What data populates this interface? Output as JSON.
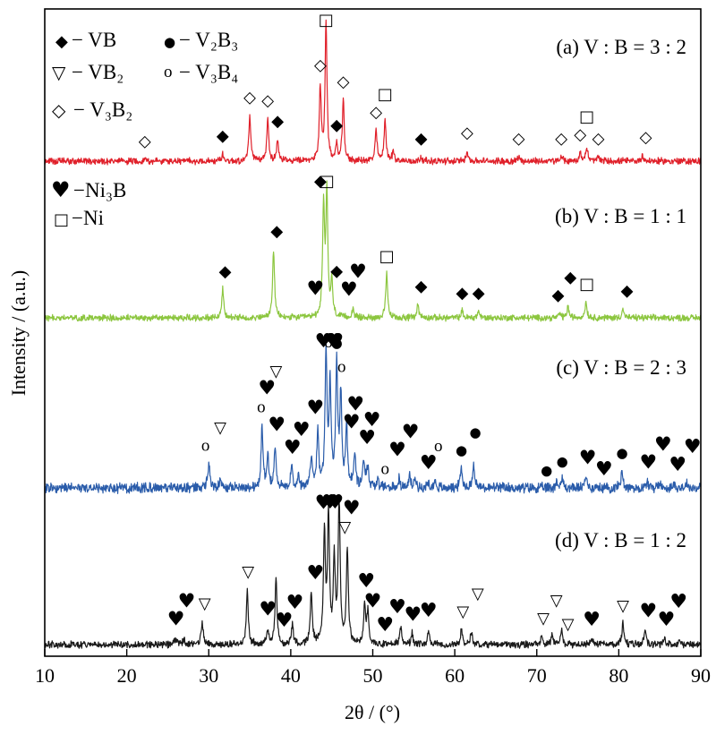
{
  "chart_data": {
    "type": "line",
    "xlabel": "2θ / (°)",
    "ylabel": "Intensity / (a.u.)",
    "xlim": [
      10,
      90
    ],
    "xticks": [
      10,
      20,
      30,
      40,
      50,
      60,
      70,
      80,
      90
    ],
    "grid": false,
    "legend_position": "top-left",
    "legend": [
      {
        "key": "VB",
        "glyph": "◆",
        "text": "− VB"
      },
      {
        "key": "V2B3",
        "glyph": "●",
        "text": "− V₂B₃"
      },
      {
        "key": "VB2",
        "glyph": "▽",
        "text": "− VB₂"
      },
      {
        "key": "V3B4",
        "glyph": "o",
        "text": "− V₃B₄"
      },
      {
        "key": "V3B2",
        "glyph": "◇",
        "text": "− V₃B₂"
      },
      {
        "key": "Ni3B",
        "glyph": "♥",
        "text": "−Ni₃B"
      },
      {
        "key": "Ni",
        "glyph": "□",
        "text": "−Ni"
      }
    ],
    "series": [
      {
        "name": "(a) V : B = 3 : 2",
        "color": "#e0202a",
        "noise": 2.2,
        "peaks": [
          [
            22.2,
            2
          ],
          [
            31.7,
            6
          ],
          [
            35.0,
            38
          ],
          [
            37.2,
            35
          ],
          [
            38.4,
            18
          ],
          [
            43.6,
            60
          ],
          [
            44.3,
            115
          ],
          [
            45.6,
            12
          ],
          [
            46.4,
            50
          ],
          [
            50.4,
            25
          ],
          [
            51.5,
            35
          ],
          [
            52.5,
            8
          ],
          [
            55.9,
            4
          ],
          [
            61.5,
            9
          ],
          [
            67.8,
            4
          ],
          [
            73.0,
            4
          ],
          [
            75.3,
            7
          ],
          [
            76.1,
            12
          ],
          [
            77.5,
            4
          ],
          [
            82.9,
            5
          ]
        ],
        "markers": [
          {
            "x": 22.2,
            "g": "◇"
          },
          {
            "x": 31.7,
            "g": "◆"
          },
          {
            "x": 35.0,
            "g": "◇"
          },
          {
            "x": 37.2,
            "g": "◇"
          },
          {
            "x": 38.4,
            "g": "◆"
          },
          {
            "x": 43.6,
            "g": "◇"
          },
          {
            "x": 44.3,
            "g": "□"
          },
          {
            "x": 45.6,
            "g": "◆"
          },
          {
            "x": 46.4,
            "g": "◇"
          },
          {
            "x": 50.4,
            "g": "◇"
          },
          {
            "x": 51.5,
            "g": "□"
          },
          {
            "x": 55.9,
            "g": "◆"
          },
          {
            "x": 61.5,
            "g": "◇"
          },
          {
            "x": 67.8,
            "g": "◇"
          },
          {
            "x": 73.0,
            "g": "◇"
          },
          {
            "x": 75.3,
            "g": "◇"
          },
          {
            "x": 76.1,
            "g": "□"
          },
          {
            "x": 77.5,
            "g": "◇"
          },
          {
            "x": 83.3,
            "g": "◇"
          }
        ]
      },
      {
        "name": "(b) V : B = 1 : 1",
        "color": "#8cc63f",
        "noise": 2.2,
        "peaks": [
          [
            31.7,
            25
          ],
          [
            37.9,
            60
          ],
          [
            44.0,
            95
          ],
          [
            44.4,
            105
          ],
          [
            45.0,
            30
          ],
          [
            47.6,
            8
          ],
          [
            51.7,
            38
          ],
          [
            55.5,
            12
          ],
          [
            60.9,
            6
          ],
          [
            62.9,
            6
          ],
          [
            72.8,
            4
          ],
          [
            73.8,
            10
          ],
          [
            76.0,
            14
          ],
          [
            80.5,
            8
          ]
        ],
        "markers": [
          {
            "x": 32.0,
            "g": "◆"
          },
          {
            "x": 38.3,
            "g": "◆"
          },
          {
            "x": 43.6,
            "g": "◆"
          },
          {
            "x": 44.4,
            "g": "□"
          },
          {
            "x": 45.6,
            "g": "◆"
          },
          {
            "x": 43.0,
            "g": "♥"
          },
          {
            "x": 47.1,
            "g": "♥"
          },
          {
            "x": 48.2,
            "g": "♥"
          },
          {
            "x": 51.7,
            "g": "□"
          },
          {
            "x": 55.9,
            "g": "◆"
          },
          {
            "x": 60.9,
            "g": "◆"
          },
          {
            "x": 62.9,
            "g": "◆"
          },
          {
            "x": 72.6,
            "g": "◆"
          },
          {
            "x": 74.1,
            "g": "◆"
          },
          {
            "x": 76.1,
            "g": "□"
          },
          {
            "x": 81.0,
            "g": "◆"
          }
        ]
      },
      {
        "name": "(c) V : B = 2 : 3",
        "color": "#2a5caa",
        "noise": 3.5,
        "peaks": [
          [
            30.0,
            22
          ],
          [
            31.4,
            8
          ],
          [
            36.5,
            55
          ],
          [
            37.2,
            28
          ],
          [
            38.1,
            38
          ],
          [
            40.1,
            18
          ],
          [
            40.9,
            10
          ],
          [
            42.5,
            28
          ],
          [
            43.3,
            50
          ],
          [
            44.3,
            120
          ],
          [
            44.8,
            90
          ],
          [
            45.6,
            110
          ],
          [
            46.1,
            80
          ],
          [
            46.8,
            55
          ],
          [
            47.8,
            30
          ],
          [
            48.9,
            25
          ],
          [
            49.4,
            20
          ],
          [
            50.6,
            6
          ],
          [
            53.2,
            8
          ],
          [
            54.5,
            10
          ],
          [
            55.2,
            8
          ],
          [
            56.8,
            5
          ],
          [
            57.6,
            6
          ],
          [
            60.8,
            18
          ],
          [
            62.3,
            22
          ],
          [
            72.4,
            6
          ],
          [
            73.1,
            8
          ],
          [
            76.0,
            10
          ],
          [
            80.4,
            16
          ],
          [
            83.5,
            6
          ],
          [
            85.0,
            5
          ],
          [
            86.8,
            4
          ],
          [
            88.3,
            4
          ]
        ],
        "markers": [
          {
            "x": 29.6,
            "g": "o"
          },
          {
            "x": 31.4,
            "g": "▽"
          },
          {
            "x": 36.4,
            "g": "o"
          },
          {
            "x": 38.3,
            "g": "♥"
          },
          {
            "x": 37.1,
            "g": "♥"
          },
          {
            "x": 38.2,
            "g": "▽"
          },
          {
            "x": 40.2,
            "g": "♥"
          },
          {
            "x": 41.3,
            "g": "♥"
          },
          {
            "x": 43.0,
            "g": "♥"
          },
          {
            "x": 44.0,
            "g": "♥"
          },
          {
            "x": 44.6,
            "g": "o"
          },
          {
            "x": 45.2,
            "g": "♥"
          },
          {
            "x": 45.4,
            "g": "♥"
          },
          {
            "x": 45.6,
            "g": "●"
          },
          {
            "x": 46.2,
            "g": "o"
          },
          {
            "x": 47.4,
            "g": "♥"
          },
          {
            "x": 47.9,
            "g": "♥"
          },
          {
            "x": 49.3,
            "g": "♥"
          },
          {
            "x": 49.9,
            "g": "♥"
          },
          {
            "x": 51.5,
            "g": "o"
          },
          {
            "x": 53.0,
            "g": "♥"
          },
          {
            "x": 54.6,
            "g": "♥"
          },
          {
            "x": 56.8,
            "g": "♥"
          },
          {
            "x": 58.0,
            "g": "o"
          },
          {
            "x": 60.8,
            "g": "●"
          },
          {
            "x": 62.5,
            "g": "●"
          },
          {
            "x": 71.2,
            "g": "●"
          },
          {
            "x": 73.1,
            "g": "●"
          },
          {
            "x": 76.2,
            "g": "♥"
          },
          {
            "x": 78.2,
            "g": "♥"
          },
          {
            "x": 80.4,
            "g": "●"
          },
          {
            "x": 83.6,
            "g": "♥"
          },
          {
            "x": 85.4,
            "g": "♥"
          },
          {
            "x": 87.2,
            "g": "♥"
          },
          {
            "x": 89.0,
            "g": "♥"
          }
        ]
      },
      {
        "name": "(d) V : B = 1 : 2",
        "color": "#1a1a1a",
        "noise": 2.6,
        "peaks": [
          [
            26.0,
            6
          ],
          [
            27.0,
            5
          ],
          [
            29.2,
            22
          ],
          [
            34.7,
            52
          ],
          [
            37.2,
            14
          ],
          [
            38.2,
            62
          ],
          [
            40.2,
            18
          ],
          [
            42.5,
            48
          ],
          [
            44.1,
            105
          ],
          [
            44.6,
            120
          ],
          [
            45.3,
            78
          ],
          [
            45.9,
            140
          ],
          [
            46.9,
            90
          ],
          [
            49.0,
            38
          ],
          [
            49.4,
            30
          ],
          [
            53.4,
            15
          ],
          [
            54.8,
            10
          ],
          [
            56.8,
            14
          ],
          [
            60.8,
            14
          ],
          [
            62.0,
            12
          ],
          [
            70.6,
            8
          ],
          [
            71.9,
            10
          ],
          [
            73.0,
            14
          ],
          [
            76.7,
            6
          ],
          [
            80.5,
            20
          ],
          [
            83.2,
            14
          ],
          [
            85.6,
            6
          ],
          [
            87.4,
            5
          ]
        ],
        "markers": [
          {
            "x": 26.0,
            "g": "♥"
          },
          {
            "x": 27.3,
            "g": "♥"
          },
          {
            "x": 29.5,
            "g": "▽"
          },
          {
            "x": 34.8,
            "g": "▽"
          },
          {
            "x": 37.2,
            "g": "♥"
          },
          {
            "x": 39.2,
            "g": "♥"
          },
          {
            "x": 40.5,
            "g": "♥"
          },
          {
            "x": 43.0,
            "g": "♥"
          },
          {
            "x": 44.0,
            "g": "♥"
          },
          {
            "x": 44.8,
            "g": "♥"
          },
          {
            "x": 45.4,
            "g": "♥"
          },
          {
            "x": 46.6,
            "g": "▽"
          },
          {
            "x": 47.4,
            "g": "♥"
          },
          {
            "x": 49.2,
            "g": "♥"
          },
          {
            "x": 50.0,
            "g": "♥"
          },
          {
            "x": 51.5,
            "g": "♥"
          },
          {
            "x": 53.0,
            "g": "♥"
          },
          {
            "x": 54.9,
            "g": "♥"
          },
          {
            "x": 56.8,
            "g": "♥"
          },
          {
            "x": 61.0,
            "g": "▽"
          },
          {
            "x": 62.8,
            "g": "▽"
          },
          {
            "x": 70.8,
            "g": "▽"
          },
          {
            "x": 72.4,
            "g": "▽"
          },
          {
            "x": 73.8,
            "g": "▽"
          },
          {
            "x": 76.7,
            "g": "♥"
          },
          {
            "x": 80.5,
            "g": "▽"
          },
          {
            "x": 83.6,
            "g": "♥"
          },
          {
            "x": 85.8,
            "g": "♥"
          },
          {
            "x": 87.3,
            "g": "♥"
          }
        ]
      }
    ]
  }
}
